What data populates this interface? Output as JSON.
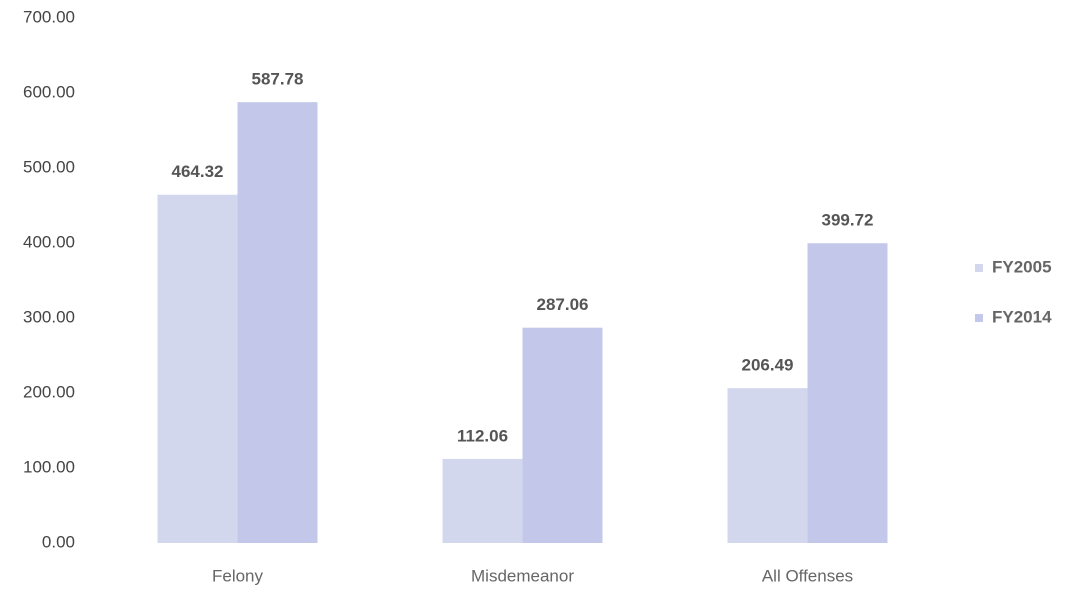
{
  "chart_data": {
    "type": "bar",
    "categories": [
      "Felony",
      "Misdemeanor",
      "All Offenses"
    ],
    "series": [
      {
        "name": "FY2005",
        "color": "#d3d7ee",
        "values": [
          464.32,
          112.06,
          206.49
        ]
      },
      {
        "name": "FY2014",
        "color": "#c3c8eb",
        "values": [
          587.78,
          287.06,
          399.72
        ]
      }
    ],
    "ylim": [
      0,
      700
    ],
    "yticks": [
      {
        "value": 0,
        "label": "0.00"
      },
      {
        "value": 100,
        "label": "100.00"
      },
      {
        "value": 200,
        "label": "200.00"
      },
      {
        "value": 300,
        "label": "300.00"
      },
      {
        "value": 400,
        "label": "400.00"
      },
      {
        "value": 500,
        "label": "500.00"
      },
      {
        "value": 600,
        "label": "600.00"
      },
      {
        "value": 700,
        "label": "700.00"
      }
    ],
    "legend": "right"
  }
}
